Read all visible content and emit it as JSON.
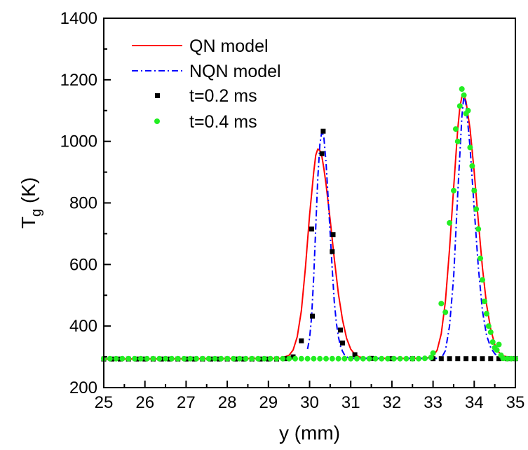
{
  "chart_data": {
    "type": "line",
    "title": "",
    "xlabel": "y (mm)",
    "ylabel_main": "T",
    "ylabel_sub": "g",
    "ylabel_tail": " (K)",
    "xlim": [
      25,
      35
    ],
    "ylim": [
      200,
      1400
    ],
    "x_ticks": [
      25,
      26,
      27,
      28,
      29,
      30,
      31,
      32,
      33,
      34,
      35
    ],
    "y_ticks": [
      200,
      400,
      600,
      800,
      1000,
      1200,
      1400
    ],
    "grid": false,
    "legend_position": "top-left",
    "colors": {
      "qn": "#ff0000",
      "nqn": "#0000ff",
      "t02": "#000000",
      "t04": "#22ee22"
    },
    "series": [
      {
        "name": "QN model",
        "style": "solid line",
        "x": [
          25.0,
          29.3,
          29.5,
          29.6,
          29.7,
          29.8,
          29.9,
          30.0,
          30.1,
          30.15,
          30.2,
          30.25,
          30.3,
          30.35,
          30.4,
          30.5,
          30.6,
          30.7,
          30.8,
          30.9,
          31.0,
          31.1,
          31.2,
          31.4,
          32.8,
          33.0,
          33.1,
          33.2,
          33.3,
          33.4,
          33.5,
          33.6,
          33.65,
          33.7,
          33.75,
          33.8,
          33.9,
          34.0,
          34.1,
          34.2,
          34.3,
          34.4,
          34.5,
          34.6,
          34.7,
          35.0
        ],
        "y": [
          293,
          295,
          305,
          322,
          365,
          450,
          590,
          760,
          900,
          955,
          975,
          970,
          950,
          910,
          860,
          745,
          620,
          505,
          420,
          360,
          325,
          308,
          300,
          295,
          295,
          302,
          322,
          375,
          480,
          650,
          850,
          1040,
          1110,
          1145,
          1150,
          1130,
          1040,
          900,
          740,
          590,
          470,
          390,
          340,
          315,
          303,
          295
        ]
      },
      {
        "name": "NQN model",
        "style": "dash-dot line",
        "x": [
          29.95,
          30.0,
          30.05,
          30.1,
          30.15,
          30.2,
          30.25,
          30.3,
          30.35,
          30.4,
          30.45,
          30.5,
          30.55,
          30.6,
          30.65,
          30.7,
          30.75,
          30.8,
          30.85,
          30.9,
          30.95,
          31.0,
          33.2,
          33.3,
          33.4,
          33.5,
          33.6,
          33.7,
          33.75,
          33.8,
          33.9,
          34.0,
          34.1,
          34.2,
          34.3,
          34.4,
          34.5,
          34.6,
          34.7,
          34.8,
          35.0
        ],
        "y": [
          325,
          360,
          430,
          560,
          720,
          880,
          990,
          1035,
          1010,
          930,
          820,
          700,
          585,
          480,
          410,
          365,
          335,
          318,
          306,
          300,
          297,
          295,
          295,
          320,
          400,
          560,
          830,
          1080,
          1150,
          1120,
          980,
          780,
          590,
          450,
          370,
          330,
          310,
          300,
          297,
          295,
          295
        ]
      },
      {
        "name": "t=0.2 ms",
        "style": "black squares",
        "x": [
          25.0,
          25.2,
          25.4,
          25.6,
          25.8,
          26.0,
          26.2,
          26.4,
          26.6,
          26.8,
          27.0,
          27.2,
          27.4,
          27.6,
          27.8,
          28.0,
          28.2,
          28.4,
          28.6,
          28.8,
          29.0,
          29.2,
          29.4,
          29.6,
          29.8,
          30.05,
          30.07,
          30.3,
          30.33,
          30.55,
          30.57,
          30.75,
          30.8,
          31.1,
          31.5,
          32.0,
          32.5,
          33.0,
          33.2,
          33.4,
          33.6,
          33.8,
          34.0,
          34.2,
          34.4,
          34.6,
          34.8,
          35.0
        ],
        "y": [
          293,
          293,
          293,
          293,
          293,
          293,
          293,
          293,
          293,
          293,
          293,
          293,
          293,
          293,
          293,
          293,
          293,
          293,
          293,
          293,
          293,
          293,
          294,
          300,
          352,
          715,
          432,
          960,
          1033,
          642,
          697,
          387,
          345,
          307,
          295,
          294,
          294,
          294,
          294,
          294,
          294,
          294,
          294,
          294,
          294,
          294,
          294,
          294
        ]
      },
      {
        "name": "t=0.4 ms",
        "style": "green circles",
        "x": [
          25.0,
          25.15,
          25.3,
          25.45,
          25.6,
          25.75,
          25.9,
          26.05,
          26.2,
          26.35,
          26.5,
          26.65,
          26.8,
          26.95,
          27.1,
          27.25,
          27.4,
          27.55,
          27.7,
          27.85,
          28.0,
          28.15,
          28.3,
          28.45,
          28.6,
          28.75,
          28.9,
          29.05,
          29.2,
          29.35,
          29.5,
          29.65,
          29.8,
          29.95,
          30.1,
          30.25,
          30.4,
          30.55,
          30.7,
          30.85,
          31.0,
          31.15,
          31.3,
          31.45,
          31.6,
          31.75,
          31.9,
          32.05,
          32.2,
          32.35,
          32.5,
          32.65,
          32.8,
          32.95,
          33.0,
          33.2,
          33.3,
          33.4,
          33.5,
          33.55,
          33.6,
          33.65,
          33.7,
          33.75,
          33.8,
          33.85,
          33.9,
          33.95,
          34.0,
          34.05,
          34.1,
          34.15,
          34.2,
          34.25,
          34.3,
          34.35,
          34.4,
          34.45,
          34.5,
          34.55,
          34.6,
          34.65,
          34.7,
          34.8,
          34.9,
          35.0
        ],
        "y": [
          294,
          294,
          294,
          294,
          294,
          294,
          294,
          294,
          294,
          294,
          294,
          294,
          294,
          294,
          294,
          294,
          294,
          294,
          294,
          294,
          294,
          294,
          294,
          294,
          294,
          294,
          294,
          294,
          294,
          294,
          294,
          294,
          294,
          294,
          294,
          294,
          294,
          294,
          294,
          294,
          294,
          294,
          294,
          294,
          294,
          294,
          294,
          294,
          294,
          294,
          294,
          294,
          295,
          298,
          312,
          473,
          445,
          735,
          840,
          1040,
          1000,
          1115,
          1170,
          1150,
          1090,
          1100,
          980,
          920,
          840,
          780,
          715,
          620,
          550,
          480,
          440,
          400,
          380,
          348,
          330,
          322,
          340,
          305,
          295,
          294,
          294,
          294
        ]
      }
    ]
  }
}
